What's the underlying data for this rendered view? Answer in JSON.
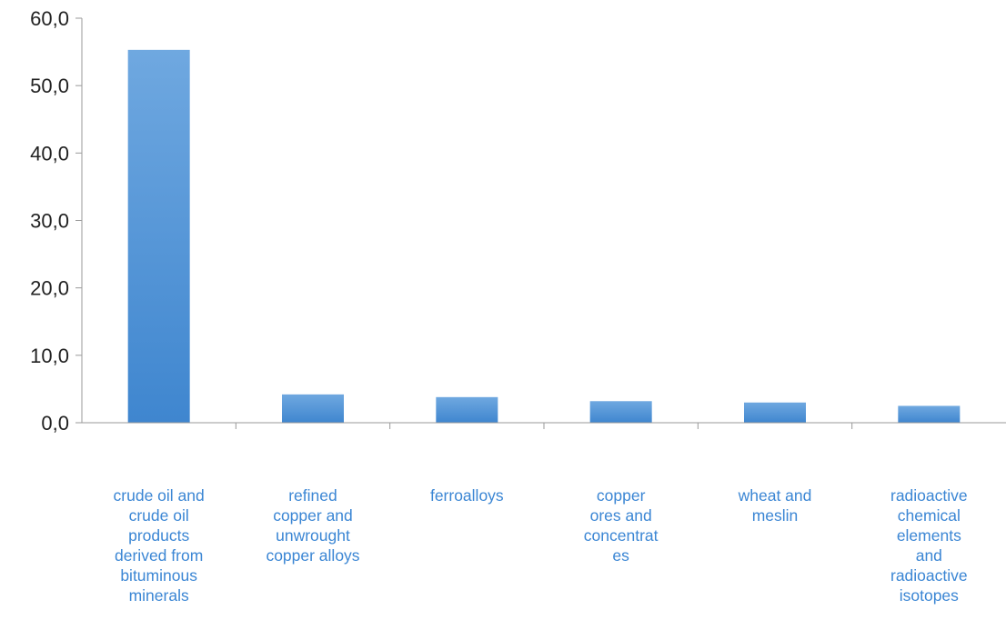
{
  "chart_data": {
    "type": "bar",
    "title": "",
    "xlabel": "",
    "ylabel": "",
    "ylim": [
      0,
      60
    ],
    "yticks": [
      "0,0",
      "10,0",
      "20,0",
      "30,0",
      "40,0",
      "50,0",
      "60,0"
    ],
    "ytick_values": [
      0,
      10,
      20,
      30,
      40,
      50,
      60
    ],
    "grid": false,
    "legend": "none",
    "bar_color": "#4a8ed4",
    "label_color": "#3b86d4",
    "categories": [
      {
        "label_lines": [
          "crude oil and",
          "crude oil",
          "products",
          "derived from",
          "bituminous",
          "minerals"
        ],
        "value": 55.3
      },
      {
        "label_lines": [
          "refined",
          "copper and",
          "unwrought",
          "copper alloys"
        ],
        "value": 4.2
      },
      {
        "label_lines": [
          "ferroalloys"
        ],
        "value": 3.8
      },
      {
        "label_lines": [
          "copper",
          "ores and",
          "concentrat",
          "es"
        ],
        "value": 3.2
      },
      {
        "label_lines": [
          "wheat and",
          "meslin"
        ],
        "value": 3.0
      },
      {
        "label_lines": [
          "radioactive",
          "chemical",
          "elements",
          "and",
          "radioactive",
          "isotopes"
        ],
        "value": 2.5
      }
    ]
  }
}
